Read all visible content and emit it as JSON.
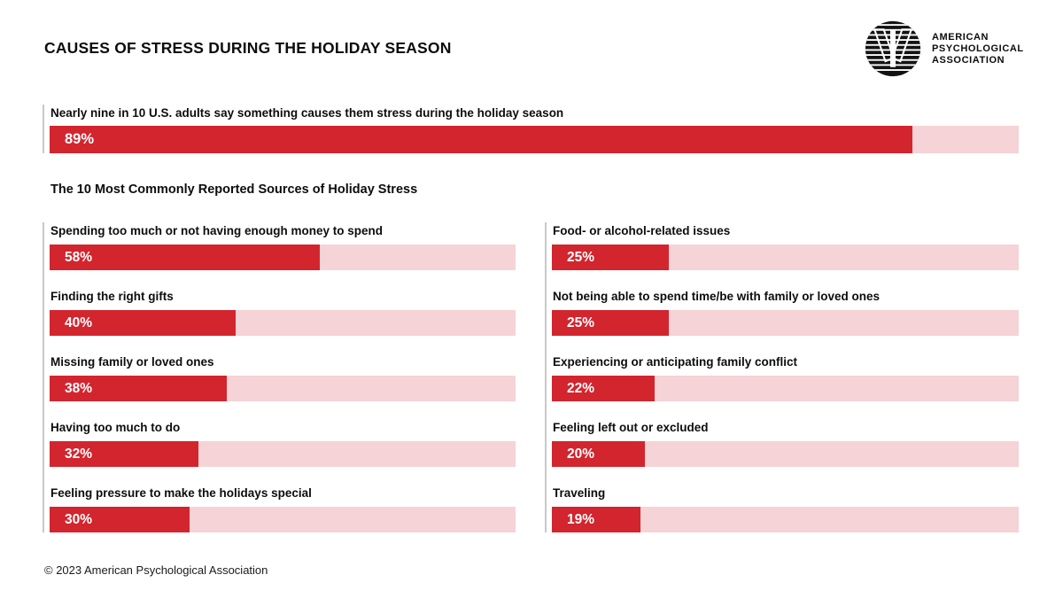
{
  "header": {
    "title": "CAUSES OF STRESS DURING THE HOLIDAY SEASON",
    "logo": {
      "organization": "American Psychological Association",
      "line1": "AMERICAN",
      "line2": "PSYCHOLOGICAL",
      "line3": "ASSOCIATION"
    }
  },
  "footer": {
    "copyright": "© 2023 American Psychological Association"
  },
  "colors": {
    "bar_red": "#d2252e",
    "bar_track_pink": "#f5d3d6",
    "accent_line_gray": "#c9c9c9",
    "text_black": "#0d0d0d",
    "logo_black": "#131313"
  },
  "chart_data": {
    "type": "bar",
    "orientation": "horizontal",
    "value_format": "percent",
    "xlim": [
      0,
      100
    ],
    "grid": false,
    "legend": false,
    "title": "CAUSES OF STRESS DURING THE HOLIDAY SEASON",
    "subtitle": "The 10 Most Commonly Reported Sources of Holiday Stress",
    "headline_bar": {
      "label": "Nearly nine in 10 U.S. adults say something causes them stress during the holiday season",
      "value": 89,
      "display": "89%"
    },
    "columns": [
      {
        "bars": [
          {
            "label": "Spending too much or not having enough money to spend",
            "value": 58,
            "display": "58%"
          },
          {
            "label": "Finding the right gifts",
            "value": 40,
            "display": "40%"
          },
          {
            "label": "Missing family or loved ones",
            "value": 38,
            "display": "38%"
          },
          {
            "label": "Having too much to do",
            "value": 32,
            "display": "32%"
          },
          {
            "label": "Feeling pressure to make the holidays special",
            "value": 30,
            "display": "30%"
          }
        ]
      },
      {
        "bars": [
          {
            "label": "Food- or alcohol-related issues",
            "value": 25,
            "display": "25%"
          },
          {
            "label": "Not being able to spend time/be with family or loved ones",
            "value": 25,
            "display": "25%"
          },
          {
            "label": "Experiencing or anticipating family conflict",
            "value": 22,
            "display": "22%"
          },
          {
            "label": "Feeling left out or excluded",
            "value": 20,
            "display": "20%"
          },
          {
            "label": "Traveling",
            "value": 19,
            "display": "19%"
          }
        ]
      }
    ]
  }
}
